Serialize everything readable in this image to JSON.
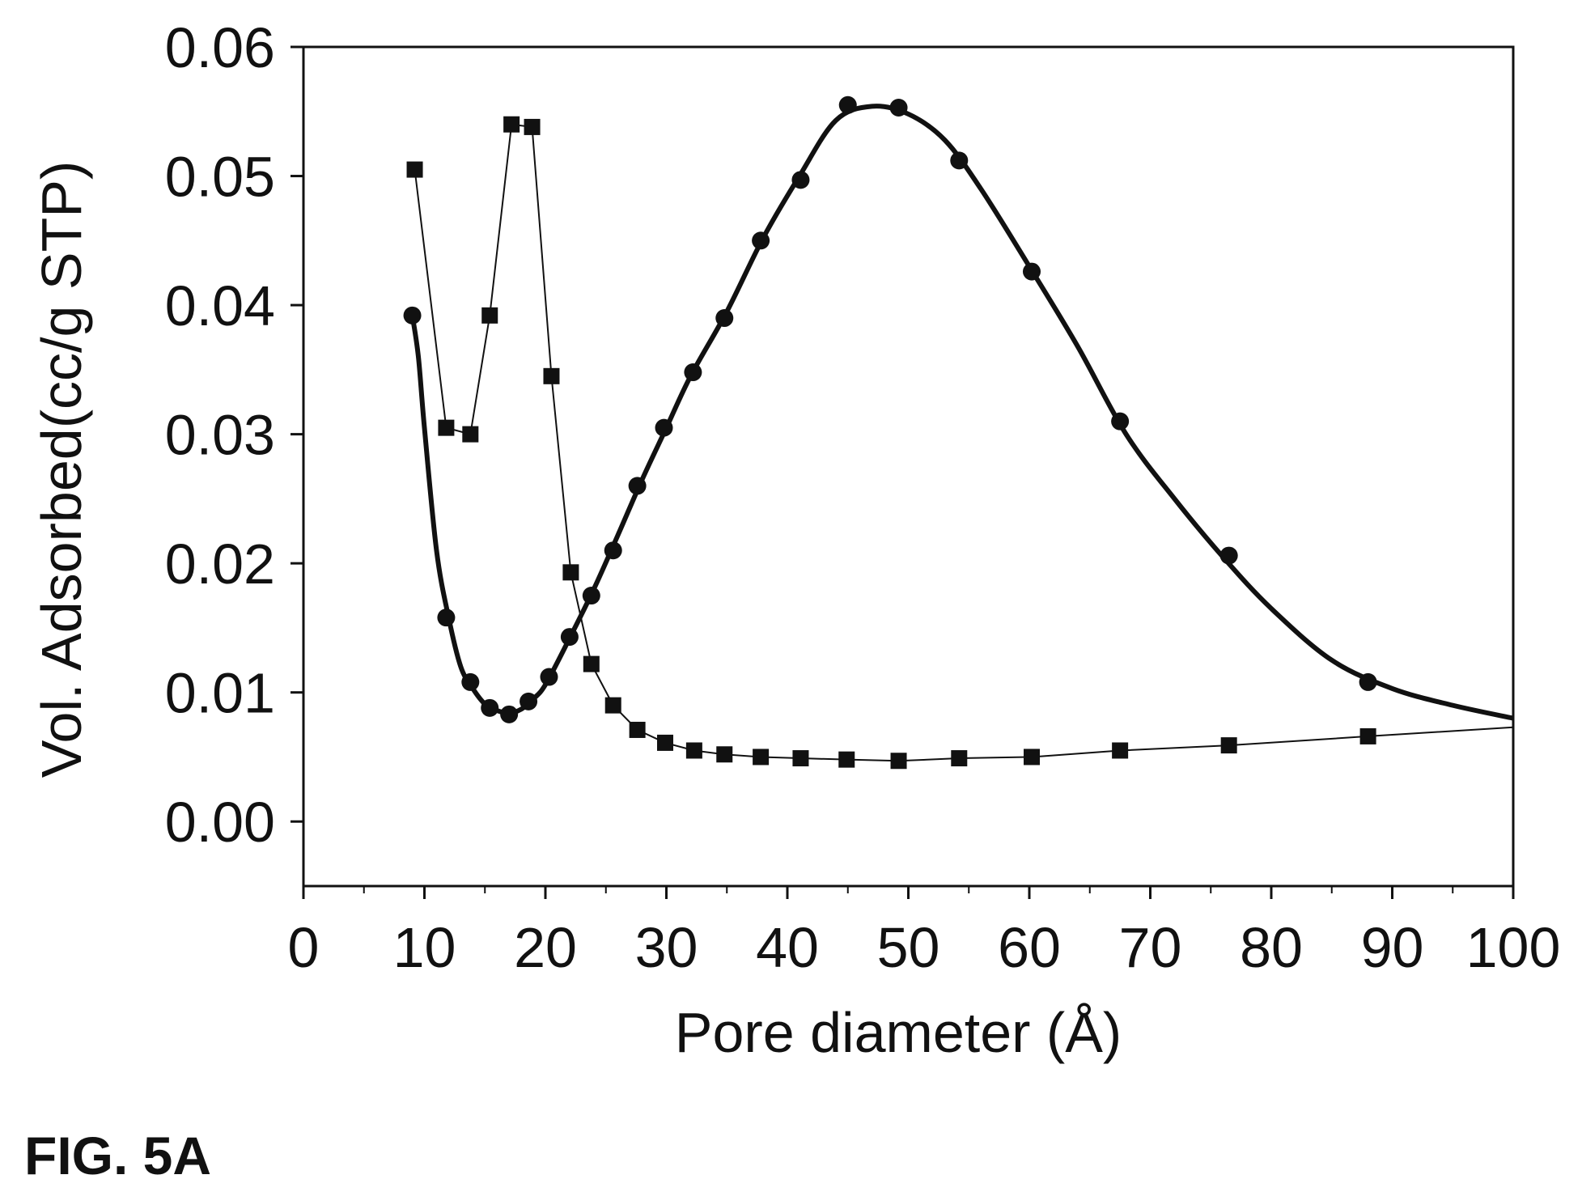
{
  "figure_label": "FIG. 5A",
  "chart_data": {
    "type": "line",
    "xlabel": "Pore diameter (Å)",
    "ylabel": "Vol. Adsorbed(cc/g STP)",
    "xlim": [
      0,
      100
    ],
    "ylim": [
      -0.005,
      0.06
    ],
    "x_ticks": [
      "0",
      "10",
      "20",
      "30",
      "40",
      "50",
      "60",
      "70",
      "80",
      "90",
      "100"
    ],
    "y_ticks": [
      "0.00",
      "0.01",
      "0.02",
      "0.03",
      "0.04",
      "0.05",
      "0.06"
    ],
    "grid": false,
    "legend": "none",
    "series": [
      {
        "marker": "square",
        "line": "thin",
        "x": [
          9.2,
          11.8,
          13.8,
          15.4,
          17.2,
          18.9,
          20.5,
          22.1,
          23.8,
          25.6,
          27.6,
          29.9,
          32.3,
          34.8,
          37.8,
          41.1,
          44.9,
          49.2,
          54.2,
          60.2,
          67.5,
          76.5,
          88.0,
          100
        ],
        "y": [
          0.0505,
          0.0305,
          0.03,
          0.0392,
          0.054,
          0.0538,
          0.0345,
          0.0193,
          0.0122,
          0.009,
          0.0071,
          0.0061,
          0.0055,
          0.0052,
          0.005,
          0.0049,
          0.0048,
          0.0047,
          0.0049,
          0.005,
          0.0055,
          0.0059,
          0.0066,
          0.0073
        ]
      },
      {
        "marker": "circle",
        "line": "thick",
        "x": [
          9.0,
          11.8,
          13.8,
          15.4,
          17.0,
          18.6,
          20.3,
          22.0,
          23.8,
          25.6,
          27.6,
          29.8,
          32.2,
          34.8,
          37.8,
          41.1,
          45.0,
          49.2,
          54.2,
          60.2,
          67.5,
          76.5,
          88.0
        ],
        "y": [
          0.0392,
          0.0158,
          0.0108,
          0.0088,
          0.0083,
          0.0093,
          0.0112,
          0.0143,
          0.0175,
          0.021,
          0.026,
          0.0305,
          0.0348,
          0.039,
          0.045,
          0.0497,
          0.0555,
          0.0553,
          0.0512,
          0.0426,
          0.031,
          0.0206,
          0.0108
        ],
        "fit_x": [
          9,
          9.5,
          10,
          11,
          12,
          13,
          14,
          15,
          16,
          17,
          18,
          19,
          20,
          22,
          24,
          26,
          28,
          30,
          32,
          35,
          38,
          41,
          44,
          47,
          50,
          53,
          56,
          60,
          64,
          68,
          72,
          76,
          80,
          85,
          90,
          95,
          100
        ],
        "fit_y": [
          0.0392,
          0.036,
          0.0305,
          0.021,
          0.0158,
          0.012,
          0.0103,
          0.0091,
          0.0086,
          0.0084,
          0.0087,
          0.0095,
          0.0106,
          0.0142,
          0.018,
          0.0222,
          0.0265,
          0.0305,
          0.0345,
          0.0395,
          0.0452,
          0.05,
          0.0543,
          0.0554,
          0.0548,
          0.0528,
          0.049,
          0.043,
          0.0368,
          0.03,
          0.025,
          0.0205,
          0.0165,
          0.0125,
          0.0103,
          0.009,
          0.008
        ]
      }
    ]
  }
}
